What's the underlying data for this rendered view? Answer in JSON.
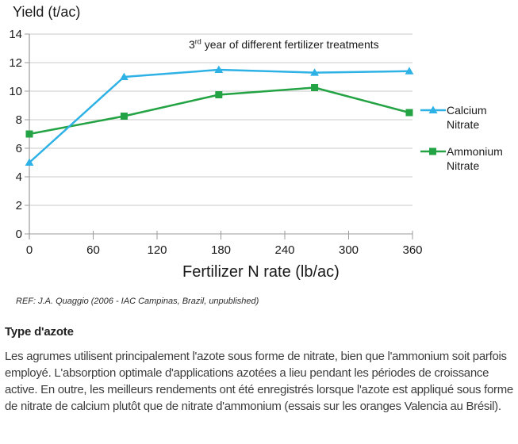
{
  "chart_data": {
    "type": "line",
    "title": "3rd year of different fertilizer treatments",
    "y_axis_label": "Yield (t/ac)",
    "x_axis_label": "Fertilizer N rate (lb/ac)",
    "x": [
      0,
      89,
      178,
      268,
      357
    ],
    "series": [
      {
        "name": "Calcium Nitrate",
        "marker": "triangle",
        "color": "#2eb2e6",
        "values": [
          5.0,
          11.0,
          11.5,
          11.3,
          11.4
        ]
      },
      {
        "name": "Ammonium Nitrate",
        "marker": "square",
        "color": "#23a343",
        "values": [
          7.0,
          8.25,
          9.75,
          10.25,
          8.5
        ]
      }
    ],
    "xlim": [
      0,
      360
    ],
    "ylim": [
      0,
      14
    ],
    "x_ticks": [
      0,
      60,
      120,
      180,
      240,
      300,
      360
    ],
    "y_ticks": [
      0,
      2,
      4,
      6,
      8,
      10,
      12,
      14
    ],
    "grid": "horizontal",
    "legend_position": "right"
  },
  "annotation": {
    "prefix": "3",
    "sup": "rd",
    "rest": " year of different fertilizer treatments"
  },
  "reference": "REF: J.A. Quaggio (2006 - IAC Campinas, Brazil, unpublished)",
  "section": {
    "heading": "Type d'azote",
    "body": "Les agrumes utilisent principalement l'azote sous forme de nitrate, bien que l'ammonium soit parfois employé. L'absorption optimale d'applications azotées a lieu pendant les périodes de croissance active. En outre, les meilleurs rendements ont été enregistrés lorsque l'azote est appliqué sous forme de nitrate de calcium plutôt que de nitrate d'ammonium (essais sur les oranges Valencia au Brésil)."
  },
  "colors": {
    "calcium_nitrate": "#2eb2e6",
    "ammonium_nitrate": "#23a343",
    "gridline": "#c9c9c9",
    "axis": "#9b9b9b",
    "chart_text": "#1a1a1a",
    "body_text": "#3d3d3d"
  }
}
